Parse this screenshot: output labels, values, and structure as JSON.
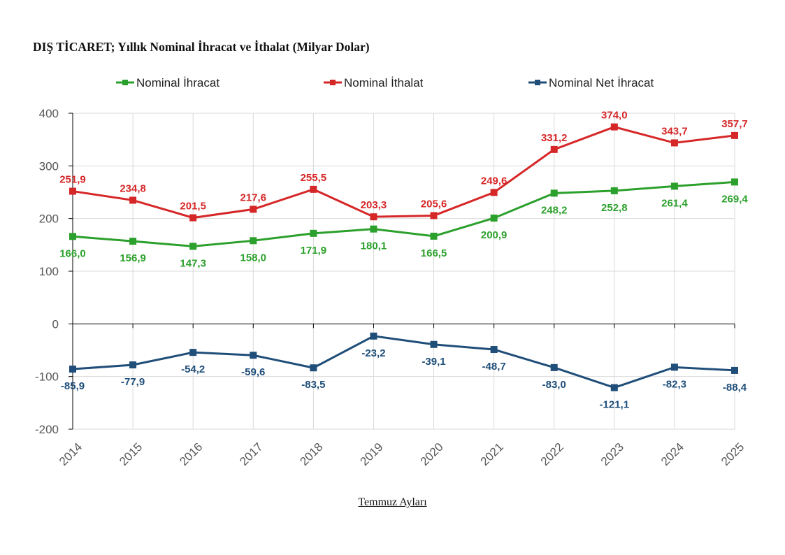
{
  "chart_data": {
    "type": "line",
    "title": "DIŞ TİCARET; Yıllık Nominal İhracat ve İthalat (Milyar Dolar)",
    "xlabel": "Temmuz Ayları",
    "ylabel": "",
    "ylim": [
      -200,
      400
    ],
    "yticks": [
      -200,
      -100,
      0,
      100,
      200,
      300,
      400
    ],
    "grid": true,
    "legend_position": "top",
    "categories": [
      "2014",
      "2015",
      "2016",
      "2017",
      "2018",
      "2019",
      "2020",
      "2021",
      "2022",
      "2023",
      "2024",
      "2025"
    ],
    "series": [
      {
        "name": "Nominal İhracat",
        "color": "#2ca02c",
        "label_pos": "below",
        "values": [
          166.0,
          156.9,
          147.3,
          158.0,
          171.9,
          180.1,
          166.5,
          200.9,
          248.2,
          252.8,
          261.4,
          269.4
        ],
        "labels": [
          "166,0",
          "156,9",
          "147,3",
          "158,0",
          "171,9",
          "180,1",
          "166,5",
          "200,9",
          "248,2",
          "252,8",
          "261,4",
          "269,4"
        ]
      },
      {
        "name": "Nominal İthalat",
        "color": "#d62728",
        "label_pos": "above",
        "values": [
          251.9,
          234.8,
          201.5,
          217.6,
          255.5,
          203.3,
          205.6,
          249.6,
          331.2,
          374.0,
          343.7,
          357.7
        ],
        "labels": [
          "251,9",
          "234,8",
          "201,5",
          "217,6",
          "255,5",
          "203,3",
          "205,6",
          "249,6",
          "331,2",
          "374,0",
          "343,7",
          "357,7"
        ]
      },
      {
        "name": "Nominal Net İhracat",
        "color": "#1f4e79",
        "label_pos": "below",
        "values": [
          -85.9,
          -77.9,
          -54.2,
          -59.6,
          -83.5,
          -23.2,
          -39.1,
          -48.7,
          -83.0,
          -121.1,
          -82.3,
          -88.4
        ],
        "labels": [
          "-85,9",
          "-77,9",
          "-54,2",
          "-59,6",
          "-83,5",
          "-23,2",
          "-39,1",
          "-48,7",
          "-83,0",
          "-121,1",
          "-82,3",
          "-88,4"
        ]
      }
    ]
  }
}
